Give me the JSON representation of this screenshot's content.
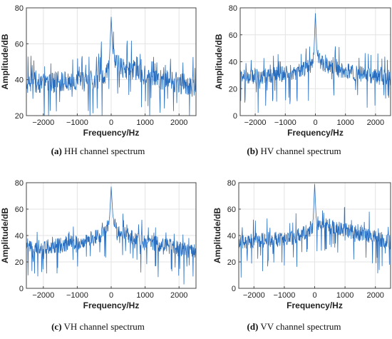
{
  "figure": {
    "panels": [
      {
        "caption_letter": "(a)",
        "caption_text": " HH channel spectrum"
      },
      {
        "caption_letter": "(b)",
        "caption_text": " HV channel spectrum"
      },
      {
        "caption_letter": "(c)",
        "caption_text": " VH channel spectrum"
      },
      {
        "caption_letter": "(d)",
        "caption_text": " VV channel spectrum"
      }
    ]
  },
  "chart_data": [
    {
      "type": "line",
      "xlabel": "Frequency/Hz",
      "ylabel": "Amplitude/dB",
      "xlim": [
        -2500,
        2500
      ],
      "ylim": [
        20,
        80
      ],
      "xticks": [
        -2000,
        -1000,
        0,
        1000,
        2000
      ],
      "yticks": [
        20,
        40,
        60,
        80
      ],
      "grid": true,
      "line_color": "#2a6fbf",
      "series": [
        {
          "x": [
            -2500,
            -2000,
            -1500,
            -1000,
            -500,
            -200,
            -100,
            -50,
            0,
            50,
            100,
            200,
            500,
            1000,
            1500,
            2000,
            2500
          ],
          "values": [
            38,
            38,
            39,
            39,
            40,
            42,
            46,
            52,
            75,
            55,
            50,
            48,
            46,
            43,
            40,
            38,
            36
          ]
        }
      ]
    },
    {
      "type": "line",
      "xlabel": "Frequency/Hz",
      "ylabel": "Amplitude/dB",
      "xlim": [
        -2500,
        2500
      ],
      "ylim": [
        0,
        80
      ],
      "xticks": [
        -2000,
        -1000,
        0,
        1000,
        2000
      ],
      "yticks": [
        0,
        20,
        40,
        60,
        80
      ],
      "grid": true,
      "line_color": "#2a6fbf",
      "series": [
        {
          "x": [
            -2500,
            -2000,
            -1500,
            -1000,
            -500,
            -200,
            -100,
            -50,
            0,
            50,
            100,
            200,
            500,
            1000,
            1500,
            2000,
            2500
          ],
          "values": [
            28,
            29,
            30,
            31,
            33,
            36,
            40,
            46,
            76,
            48,
            42,
            39,
            36,
            33,
            31,
            29,
            28
          ]
        }
      ]
    },
    {
      "type": "line",
      "xlabel": "Frequency/Hz",
      "ylabel": "Amplitude/dB",
      "xlim": [
        -2500,
        2500
      ],
      "ylim": [
        0,
        80
      ],
      "xticks": [
        -2000,
        -1000,
        0,
        1000,
        2000
      ],
      "yticks": [
        0,
        20,
        40,
        60,
        80
      ],
      "grid": true,
      "line_color": "#2a6fbf",
      "series": [
        {
          "x": [
            -2500,
            -2000,
            -1500,
            -1000,
            -500,
            -200,
            -100,
            -50,
            0,
            50,
            100,
            200,
            500,
            1000,
            1500,
            2000,
            2500
          ],
          "values": [
            30,
            31,
            33,
            35,
            38,
            42,
            47,
            53,
            77,
            55,
            48,
            44,
            40,
            36,
            33,
            30,
            28
          ]
        }
      ]
    },
    {
      "type": "line",
      "xlabel": "Frequency/Hz",
      "ylabel": "Amplitude/dB",
      "xlim": [
        -2500,
        2500
      ],
      "ylim": [
        0,
        80
      ],
      "xticks": [
        -2000,
        -1000,
        0,
        1000,
        2000
      ],
      "yticks": [
        0,
        20,
        40,
        60,
        80
      ],
      "grid": true,
      "line_color": "#2a6fbf",
      "series": [
        {
          "x": [
            -2500,
            -2000,
            -1500,
            -1000,
            -500,
            -200,
            -100,
            -50,
            0,
            50,
            100,
            200,
            500,
            1000,
            1500,
            2000,
            2500
          ],
          "values": [
            35,
            36,
            37,
            38,
            40,
            43,
            47,
            52,
            79,
            53,
            50,
            48,
            47,
            44,
            41,
            38,
            35
          ]
        }
      ]
    }
  ]
}
